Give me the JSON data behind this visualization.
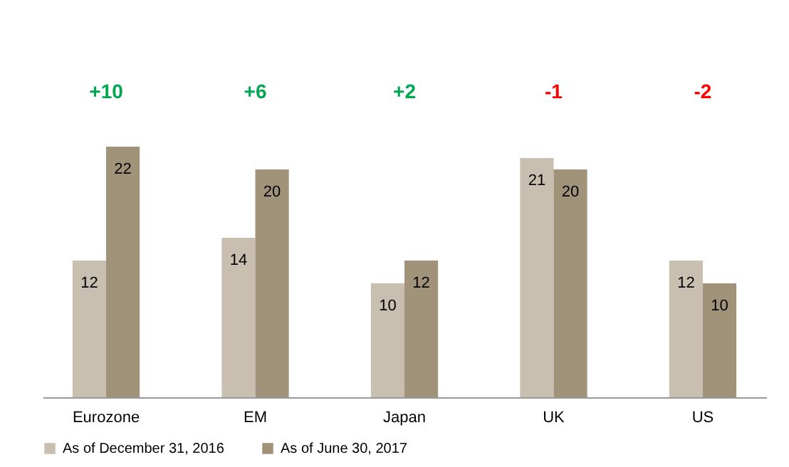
{
  "chart_data": {
    "type": "bar",
    "categories": [
      "Eurozone",
      "EM",
      "Japan",
      "UK",
      "US"
    ],
    "series": [
      {
        "name": "As of December 31, 2016",
        "color": "#c9bfb0",
        "values": [
          12,
          14,
          10,
          21,
          12
        ]
      },
      {
        "name": "As of June 30, 2017",
        "color": "#a09379",
        "values": [
          22,
          20,
          12,
          20,
          10
        ]
      }
    ],
    "data_labels": true,
    "legend": "bottom",
    "grid": false,
    "annotations": [
      "+10",
      "+6",
      "+2",
      "-1",
      "-2"
    ]
  }
}
